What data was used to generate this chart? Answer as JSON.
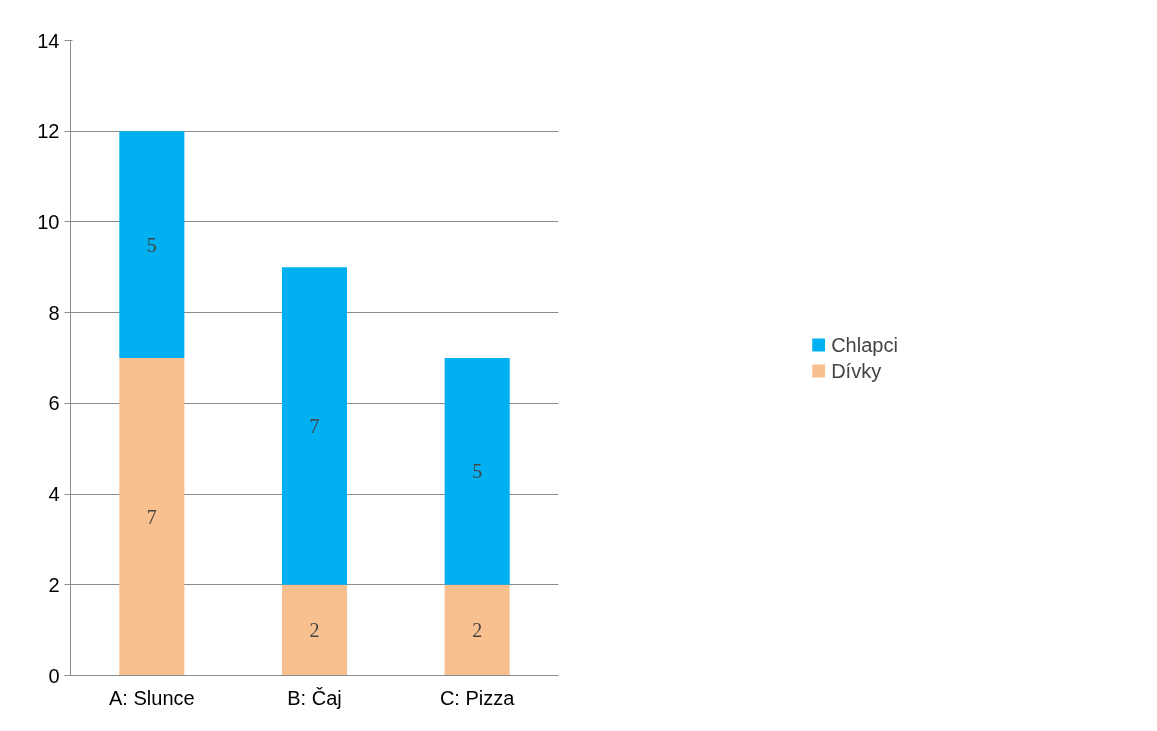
{
  "chart_data": {
    "type": "bar",
    "stacked": true,
    "data_labels": true,
    "categories": [
      "A: Slunce",
      "B: Čaj",
      "C: Pizza"
    ],
    "series": [
      {
        "name": "Dívky",
        "color": "#f9c08f",
        "values": [
          7,
          2,
          2
        ]
      },
      {
        "name": "Chlapci",
        "color": "#00b0f0",
        "values": [
          5,
          7,
          5
        ]
      }
    ],
    "ylim": [
      0,
      14
    ],
    "yticks": [
      0,
      2,
      4,
      6,
      8,
      10,
      12,
      14
    ],
    "grid": "y",
    "legend": "right"
  }
}
